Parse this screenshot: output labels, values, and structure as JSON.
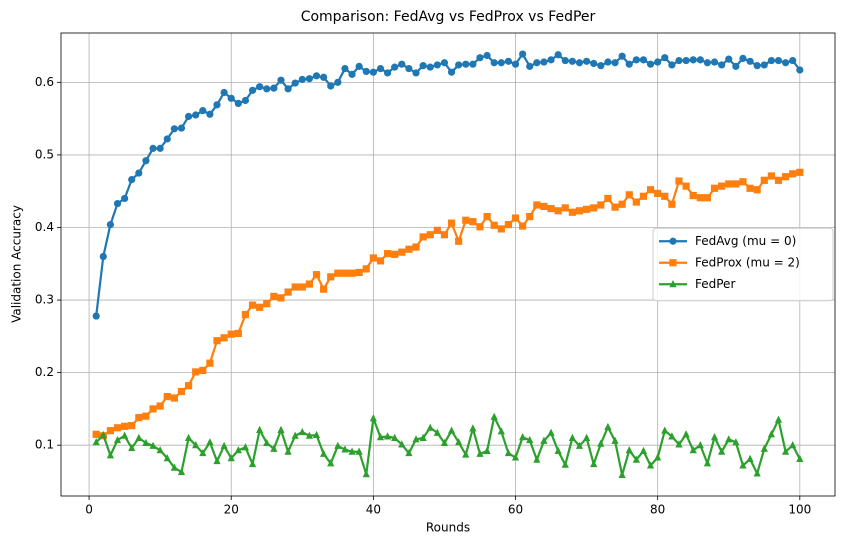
{
  "chart_data": {
    "type": "line",
    "title": "Comparison: FedAvg vs FedProx vs FedPer",
    "x_label": "Rounds",
    "y_label": "Validation Accuracy",
    "x": [
      1,
      2,
      3,
      4,
      5,
      6,
      7,
      8,
      9,
      10,
      11,
      12,
      13,
      14,
      15,
      16,
      17,
      18,
      19,
      20,
      21,
      22,
      23,
      24,
      25,
      26,
      27,
      28,
      29,
      30,
      31,
      32,
      33,
      34,
      35,
      36,
      37,
      38,
      39,
      40,
      41,
      42,
      43,
      44,
      45,
      46,
      47,
      48,
      49,
      50,
      51,
      52,
      53,
      54,
      55,
      56,
      57,
      58,
      59,
      60,
      61,
      62,
      63,
      64,
      65,
      66,
      67,
      68,
      69,
      70,
      71,
      72,
      73,
      74,
      75,
      76,
      77,
      78,
      79,
      80,
      81,
      82,
      83,
      84,
      85,
      86,
      87,
      88,
      89,
      90,
      91,
      92,
      93,
      94,
      95,
      96,
      97,
      98,
      99,
      100
    ],
    "series": [
      {
        "name": "FedAvg (mu = 0)",
        "color": "#1f77b4",
        "marker": "circle",
        "values": [
          0.278,
          0.36,
          0.404,
          0.433,
          0.44,
          0.466,
          0.475,
          0.492,
          0.509,
          0.509,
          0.522,
          0.536,
          0.537,
          0.553,
          0.555,
          0.561,
          0.556,
          0.569,
          0.586,
          0.578,
          0.571,
          0.575,
          0.589,
          0.594,
          0.591,
          0.592,
          0.603,
          0.591,
          0.599,
          0.604,
          0.605,
          0.609,
          0.607,
          0.595,
          0.6,
          0.619,
          0.611,
          0.622,
          0.615,
          0.614,
          0.619,
          0.613,
          0.621,
          0.625,
          0.619,
          0.613,
          0.623,
          0.621,
          0.624,
          0.627,
          0.614,
          0.624,
          0.625,
          0.625,
          0.634,
          0.637,
          0.627,
          0.627,
          0.629,
          0.625,
          0.639,
          0.622,
          0.627,
          0.628,
          0.631,
          0.638,
          0.63,
          0.629,
          0.627,
          0.629,
          0.626,
          0.623,
          0.628,
          0.627,
          0.636,
          0.625,
          0.631,
          0.631,
          0.625,
          0.628,
          0.634,
          0.624,
          0.63,
          0.63,
          0.631,
          0.631,
          0.627,
          0.628,
          0.624,
          0.632,
          0.622,
          0.633,
          0.629,
          0.623,
          0.624,
          0.63,
          0.63,
          0.627,
          0.63,
          0.617
        ]
      },
      {
        "name": "FedProx (mu = 2)",
        "color": "#ff7f0e",
        "marker": "square",
        "values": [
          0.115,
          0.113,
          0.12,
          0.124,
          0.126,
          0.127,
          0.138,
          0.14,
          0.15,
          0.154,
          0.167,
          0.165,
          0.174,
          0.182,
          0.201,
          0.203,
          0.213,
          0.244,
          0.248,
          0.253,
          0.254,
          0.28,
          0.293,
          0.29,
          0.295,
          0.305,
          0.303,
          0.311,
          0.318,
          0.318,
          0.322,
          0.335,
          0.315,
          0.332,
          0.337,
          0.337,
          0.337,
          0.338,
          0.343,
          0.358,
          0.354,
          0.364,
          0.363,
          0.366,
          0.37,
          0.373,
          0.387,
          0.39,
          0.396,
          0.39,
          0.406,
          0.381,
          0.41,
          0.408,
          0.401,
          0.415,
          0.403,
          0.398,
          0.404,
          0.413,
          0.402,
          0.415,
          0.431,
          0.429,
          0.426,
          0.423,
          0.427,
          0.421,
          0.423,
          0.425,
          0.427,
          0.431,
          0.44,
          0.428,
          0.432,
          0.445,
          0.435,
          0.443,
          0.452,
          0.447,
          0.443,
          0.432,
          0.464,
          0.457,
          0.444,
          0.441,
          0.441,
          0.454,
          0.457,
          0.46,
          0.46,
          0.463,
          0.454,
          0.452,
          0.465,
          0.471,
          0.465,
          0.47,
          0.474,
          0.476
        ]
      },
      {
        "name": "FedPer",
        "color": "#2ca02c",
        "marker": "triangle",
        "values": [
          0.104,
          0.114,
          0.086,
          0.107,
          0.113,
          0.096,
          0.11,
          0.103,
          0.099,
          0.093,
          0.082,
          0.069,
          0.063,
          0.11,
          0.1,
          0.089,
          0.104,
          0.078,
          0.099,
          0.082,
          0.093,
          0.097,
          0.074,
          0.121,
          0.103,
          0.095,
          0.121,
          0.091,
          0.113,
          0.118,
          0.113,
          0.114,
          0.088,
          0.075,
          0.099,
          0.094,
          0.091,
          0.091,
          0.06,
          0.137,
          0.111,
          0.112,
          0.11,
          0.101,
          0.089,
          0.108,
          0.11,
          0.124,
          0.117,
          0.103,
          0.12,
          0.104,
          0.087,
          0.123,
          0.088,
          0.092,
          0.139,
          0.119,
          0.089,
          0.083,
          0.111,
          0.107,
          0.08,
          0.106,
          0.117,
          0.092,
          0.073,
          0.11,
          0.099,
          0.11,
          0.074,
          0.102,
          0.125,
          0.106,
          0.059,
          0.093,
          0.08,
          0.092,
          0.072,
          0.083,
          0.12,
          0.112,
          0.101,
          0.115,
          0.093,
          0.1,
          0.075,
          0.111,
          0.091,
          0.108,
          0.104,
          0.072,
          0.081,
          0.061,
          0.095,
          0.115,
          0.135,
          0.091,
          0.1,
          0.081
        ]
      }
    ],
    "xlim": [
      -3.95,
      104.95
    ],
    "xticks": [
      0,
      20,
      40,
      60,
      80,
      100
    ],
    "ylim": [
      0.03,
      0.668
    ],
    "yticks": [
      0.1,
      0.2,
      0.3,
      0.4,
      0.5,
      0.6
    ],
    "grid": true,
    "legend": "center right"
  }
}
